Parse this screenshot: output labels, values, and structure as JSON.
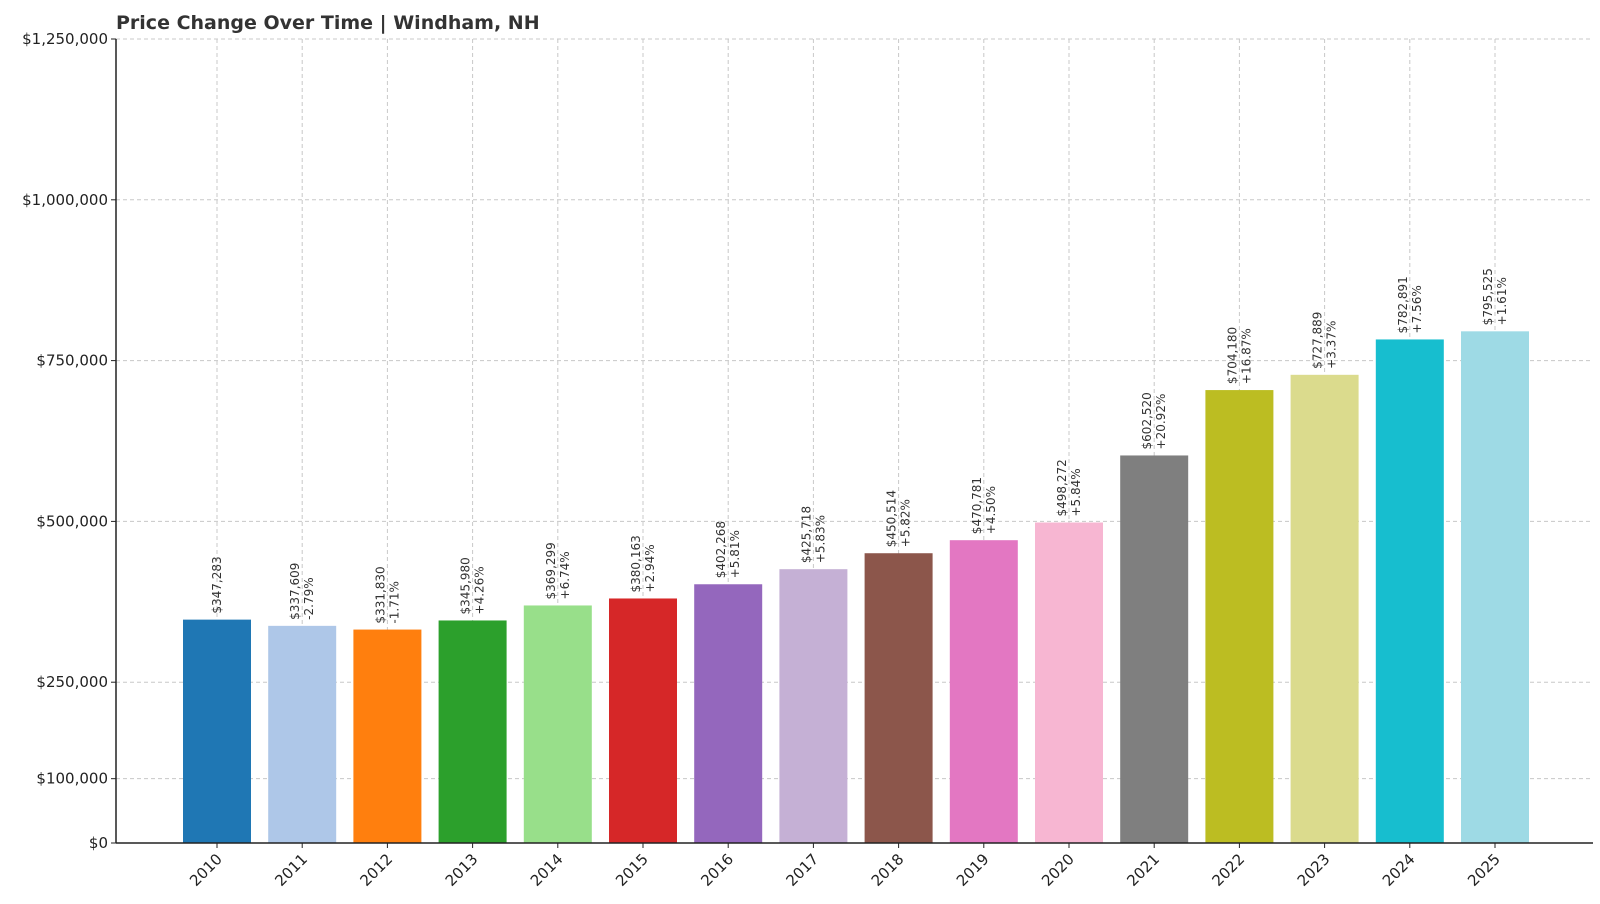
{
  "chart_data": {
    "type": "bar",
    "title": "Price Change Over Time | Windham, NH",
    "xlabel": "",
    "ylabel": "",
    "ylim": [
      0,
      1250000
    ],
    "grid": true,
    "yticks": [
      0,
      100000,
      250000,
      500000,
      750000,
      1000000,
      1250000
    ],
    "ytick_labels": [
      "$0",
      "$100,000",
      "$250,000",
      "$500,000",
      "$750,000",
      "$1,000,000",
      "$1,250,000"
    ],
    "categories": [
      "2010",
      "2011",
      "2012",
      "2013",
      "2014",
      "2015",
      "2016",
      "2017",
      "2018",
      "2019",
      "2020",
      "2021",
      "2022",
      "2023",
      "2024",
      "2025"
    ],
    "values": [
      347283,
      337609,
      331830,
      345980,
      369299,
      380163,
      402268,
      425718,
      450514,
      470781,
      498272,
      602520,
      704180,
      727889,
      782891,
      795525
    ],
    "value_labels": [
      "$347,283",
      "$337,609",
      "$331,830",
      "$345,980",
      "$369,299",
      "$380,163",
      "$402,268",
      "$425,718",
      "$450,514",
      "$470,781",
      "$498,272",
      "$602,520",
      "$704,180",
      "$727,889",
      "$782,891",
      "$795,525"
    ],
    "change_labels": [
      "",
      "-2.79%",
      "-1.71%",
      "+4.26%",
      "+6.74%",
      "+2.94%",
      "+5.81%",
      "+5.83%",
      "+5.82%",
      "+4.50%",
      "+5.84%",
      "+20.92%",
      "+16.87%",
      "+3.37%",
      "+7.56%",
      "+1.61%"
    ],
    "colors": [
      "#1f77b4",
      "#aec7e8",
      "#ff7f0e",
      "#2ca02c",
      "#98df8a",
      "#d62728",
      "#9467bd",
      "#c5b0d5",
      "#8c564b",
      "#e377c2",
      "#f7b6d2",
      "#7f7f7f",
      "#bcbd22",
      "#dbdb8d",
      "#17becf",
      "#9edae5"
    ]
  }
}
